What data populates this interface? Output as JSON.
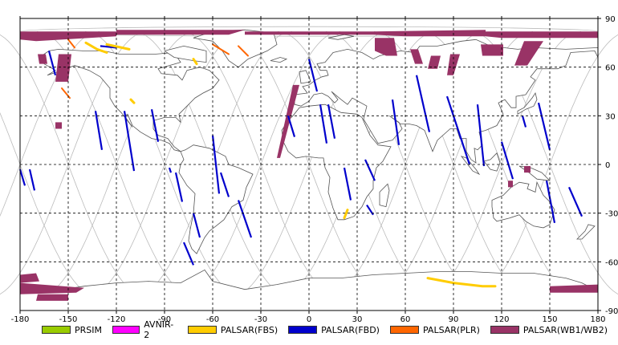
{
  "map": {
    "lon_range": [
      -180,
      180
    ],
    "lat_range": [
      -90,
      90
    ],
    "x_ticks": [
      "-180",
      "-150",
      "-120",
      "-90",
      "-60",
      "-30",
      "0",
      "30",
      "60",
      "90",
      "120",
      "150",
      "180"
    ],
    "y_ticks": [
      "90",
      "60",
      "30",
      "0",
      "-30",
      "-60",
      "-90"
    ],
    "grid": "dashed 30-degree graticule",
    "background": "#ffffff",
    "coastline_color": "#555555",
    "orbit_track_color": "#bbbbbb"
  },
  "legend": [
    {
      "label": "PRSIM",
      "color": "#99cc00"
    },
    {
      "label": "AVNIR-2",
      "color": "#ff00ff"
    },
    {
      "label": "PALSAR(FBS)",
      "color": "#ffcc00"
    },
    {
      "label": "PALSAR(FBD)",
      "color": "#0000cc"
    },
    {
      "label": "PALSAR(PLR)",
      "color": "#ff6600"
    },
    {
      "label": "PALSAR(WB1/WB2)",
      "color": "#993366"
    }
  ]
}
